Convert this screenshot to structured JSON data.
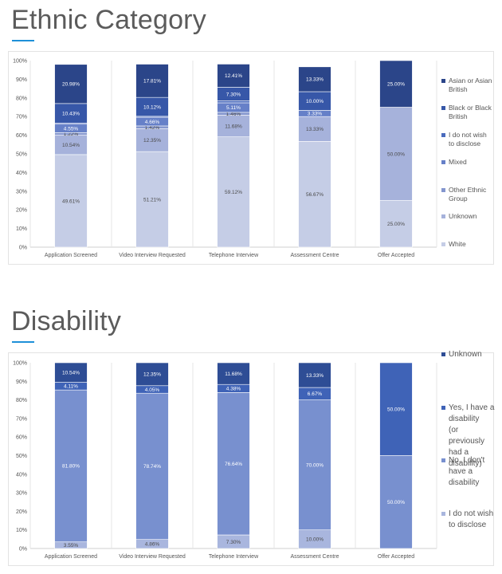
{
  "sections": [
    {
      "title": "Ethnic Category",
      "chart_data": {
        "type": "bar",
        "stacked": true,
        "percent": true,
        "categories": [
          "Application Screened",
          "Video Interview Requested",
          "Telephone Interview",
          "Assessment Centre",
          "Offer Accepted"
        ],
        "ylim": [
          0,
          100
        ],
        "yticks": [
          "0%",
          "10%",
          "20%",
          "30%",
          "40%",
          "50%",
          "60%",
          "70%",
          "80%",
          "90%",
          "100%"
        ],
        "grid": false,
        "legend_position": "right",
        "series": [
          {
            "name": "White",
            "color": "#c5cde6",
            "values": [
              49.61,
              51.21,
              59.12,
              56.67,
              25.0
            ],
            "labels": [
              "49.61%",
              "51.21%",
              "59.12%",
              "56.67%",
              "25.00%"
            ]
          },
          {
            "name": "Unknown",
            "color": "#a6b2db",
            "values": [
              10.54,
              12.35,
              11.68,
              13.33,
              50.0
            ],
            "labels": [
              "10.54%",
              "12.35%",
              "11.68%",
              "13.33%",
              "50.00%"
            ]
          },
          {
            "name": "Other Ethnic Group",
            "color": "#8496ce",
            "values": [
              1.22,
              1.42,
              1.46,
              0,
              0
            ],
            "labels": [
              "1.22%",
              "1.42%",
              "1.46%",
              "",
              ""
            ]
          },
          {
            "name": "Mixed",
            "color": "#6680c8",
            "values": [
              4.55,
              4.66,
              5.11,
              3.33,
              0
            ],
            "labels": [
              "4.55%",
              "4.66%",
              "5.11%",
              "3.33%",
              ""
            ]
          },
          {
            "name": "I do not wish to disclose",
            "color": "#4a6bbd",
            "values": [
              0.63,
              0.51,
              1.03,
              0,
              0
            ],
            "labels": [
              "",
              "",
              "",
              "",
              ""
            ]
          },
          {
            "name": "Black or Black British",
            "color": "#3757a8",
            "values": [
              10.43,
              10.12,
              7.3,
              10.0,
              0
            ],
            "labels": [
              "10.43%",
              "10.12%",
              "7.30%",
              "10.00%",
              ""
            ]
          },
          {
            "name": "Asian or Asian British",
            "color": "#2b4589",
            "values": [
              20.98,
              17.81,
              12.41,
              13.33,
              25.0
            ],
            "labels": [
              "20.98%",
              "17.81%",
              "12.41%",
              "13.33%",
              "25.00%"
            ]
          }
        ],
        "legend": [
          {
            "label": "Asian or Asian British",
            "color": "#2b4589"
          },
          {
            "label": "Black or Black British",
            "color": "#3757a8"
          },
          {
            "label": "I do not wish to disclose",
            "color": "#4a6bbd"
          },
          {
            "label": "Mixed",
            "color": "#6680c8"
          },
          {
            "label": "Other Ethnic Group",
            "color": "#8496ce"
          },
          {
            "label": "Unknown",
            "color": "#a6b2db"
          },
          {
            "label": "White",
            "color": "#c5cde6"
          }
        ]
      }
    },
    {
      "title": "Disability",
      "chart_data": {
        "type": "bar",
        "stacked": true,
        "percent": true,
        "categories": [
          "Application Screened",
          "Video Interview Requested",
          "Telephone Interview",
          "Assessment Centre",
          "Offer Accepted"
        ],
        "ylim": [
          0,
          100
        ],
        "yticks": [
          "0%",
          "10%",
          "20%",
          "30%",
          "40%",
          "50%",
          "60%",
          "70%",
          "80%",
          "90%",
          "100%"
        ],
        "grid": false,
        "legend_position": "right",
        "series": [
          {
            "name": "I do not wish to disclose",
            "color": "#a9b6de",
            "values": [
              3.55,
              4.86,
              7.3,
              10.0,
              0
            ],
            "labels": [
              "3.55%",
              "4.86%",
              "7.30%",
              "10.00%",
              ""
            ]
          },
          {
            "name": "No, I don't have a disability",
            "color": "#7890cf",
            "values": [
              81.8,
              78.74,
              76.64,
              70.0,
              50.0
            ],
            "labels": [
              "81.80%",
              "78.74%",
              "76.64%",
              "70.00%",
              "50.00%"
            ]
          },
          {
            "name": "Yes, I have a disability (or previously had a disability)",
            "color": "#3f63b7",
            "values": [
              4.11,
              4.05,
              4.38,
              6.67,
              50.0
            ],
            "labels": [
              "4.11%",
              "4.05%",
              "4.38%",
              "6.67%",
              "50.00%"
            ]
          },
          {
            "name": "Unknown",
            "color": "#2e4d95",
            "values": [
              10.54,
              12.35,
              11.68,
              13.33,
              0
            ],
            "labels": [
              "10.54%",
              "12.35%",
              "11.68%",
              "13.33%",
              ""
            ]
          }
        ],
        "legend": [
          {
            "label": "Unknown",
            "color": "#2e4d95"
          },
          {
            "label": "Yes, I have a disability (or previously had a disability)",
            "color": "#3f63b7"
          },
          {
            "label": "No, I don't have a disability",
            "color": "#7890cf"
          },
          {
            "label": "I do not wish to disclose",
            "color": "#a9b6de"
          }
        ]
      }
    }
  ]
}
